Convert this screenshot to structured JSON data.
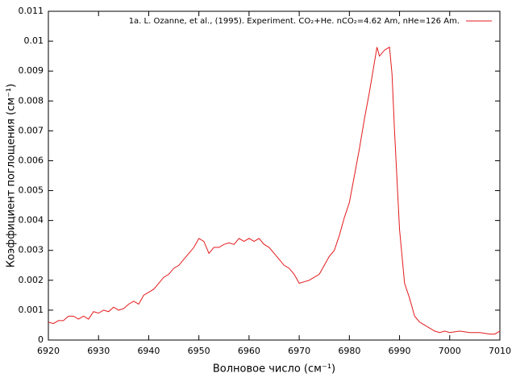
{
  "chart_data": {
    "type": "line",
    "xlabel": "Волновое число (см⁻¹)",
    "ylabel": "Коэффициент поглощения (см⁻¹)",
    "xlim": [
      6920,
      7010
    ],
    "ylim": [
      0,
      0.011
    ],
    "xticks": [
      6920,
      6930,
      6940,
      6950,
      6960,
      6970,
      6980,
      6990,
      7000,
      7010
    ],
    "yticks": [
      0,
      0.001,
      0.002,
      0.003,
      0.004,
      0.005,
      0.006,
      0.007,
      0.008,
      0.009,
      0.01,
      0.011
    ],
    "legend": "top-right",
    "x": [
      6920,
      6921,
      6922,
      6923,
      6924,
      6925,
      6926,
      6927,
      6928,
      6929,
      6930,
      6931,
      6932,
      6933,
      6934,
      6935,
      6936,
      6937,
      6938,
      6939,
      6940,
      6941,
      6942,
      6943,
      6944,
      6945,
      6946,
      6947,
      6948,
      6949,
      6950,
      6951,
      6952,
      6953,
      6954,
      6955,
      6956,
      6957,
      6958,
      6959,
      6960,
      6961,
      6962,
      6963,
      6964,
      6965,
      6966,
      6967,
      6968,
      6969,
      6970,
      6971,
      6972,
      6973,
      6974,
      6975,
      6976,
      6977,
      6978,
      6979,
      6980,
      6981,
      6982,
      6983,
      6984,
      6985,
      6985.5,
      6986,
      6987,
      6988,
      6988.5,
      6989,
      6990,
      6991,
      6992,
      6993,
      6994,
      6995,
      6996,
      6997,
      6998,
      6999,
      7000,
      7002,
      7004,
      7006,
      7008,
      7009,
      7010
    ],
    "series": [
      {
        "name": "1a. L. Ozanne, et al., (1995). Experiment. CO₂+He. nCO₂=4.62 Am, nHe=126 Am.",
        "color": "#e41a1c",
        "values": [
          0.0006,
          0.00055,
          0.00065,
          0.00065,
          0.0008,
          0.0008,
          0.0007,
          0.0008,
          0.0007,
          0.00095,
          0.0009,
          0.001,
          0.00095,
          0.0011,
          0.001,
          0.00105,
          0.0012,
          0.0013,
          0.0012,
          0.0015,
          0.0016,
          0.0017,
          0.0019,
          0.0021,
          0.0022,
          0.0024,
          0.0025,
          0.0027,
          0.0029,
          0.0031,
          0.0034,
          0.0033,
          0.0029,
          0.0031,
          0.0031,
          0.0032,
          0.00325,
          0.0032,
          0.0034,
          0.0033,
          0.0034,
          0.0033,
          0.0034,
          0.0032,
          0.0031,
          0.0029,
          0.0027,
          0.0025,
          0.0024,
          0.0022,
          0.0019,
          0.00195,
          0.002,
          0.0021,
          0.0022,
          0.0025,
          0.0028,
          0.003,
          0.0035,
          0.0041,
          0.0046,
          0.0055,
          0.0064,
          0.0074,
          0.0083,
          0.0093,
          0.0098,
          0.0095,
          0.0097,
          0.0098,
          0.0089,
          0.007,
          0.0037,
          0.0019,
          0.0014,
          0.0008,
          0.0006,
          0.0005,
          0.0004,
          0.0003,
          0.00025,
          0.0003,
          0.00025,
          0.0003,
          0.00025,
          0.00025,
          0.0002,
          0.0002,
          0.0003
        ]
      }
    ]
  }
}
